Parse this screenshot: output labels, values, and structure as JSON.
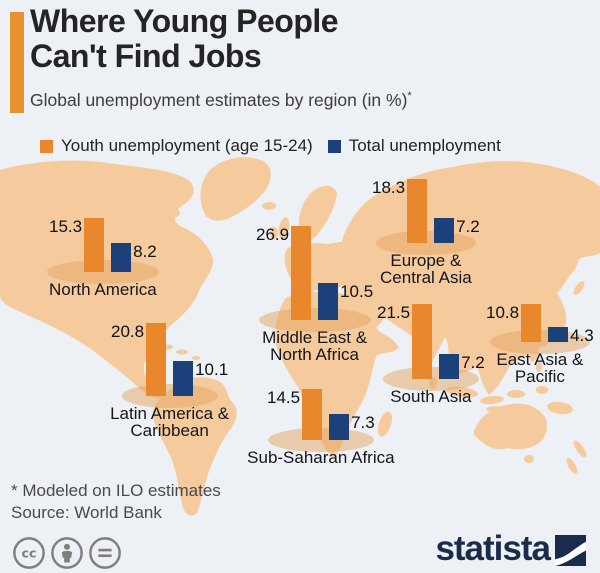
{
  "header": {
    "title_line1": "Where Young People",
    "title_line2": "Can't Find Jobs",
    "subtitle": "Global unemployment estimates by region (in %)",
    "note_mark": "*"
  },
  "legend": {
    "youth_label": "Youth unemployment (age 15-24)",
    "total_label": "Total unemployment"
  },
  "regions": [
    {
      "name": "North America",
      "youth": "15.3",
      "total": "8.2"
    },
    {
      "name": "Latin America &\nCaribbean",
      "youth": "20.8",
      "total": "10.1"
    },
    {
      "name": "Middle East &\nNorth Africa",
      "youth": "26.9",
      "total": "10.5"
    },
    {
      "name": "Sub-Saharan Africa",
      "youth": "14.5",
      "total": "7.3"
    },
    {
      "name": "Europe &\nCentral Asia",
      "youth": "18.3",
      "total": "7.2"
    },
    {
      "name": "South Asia",
      "youth": "21.5",
      "total": "7.2"
    },
    {
      "name": "East Asia &\nPacific",
      "youth": "10.8",
      "total": "4.3"
    }
  ],
  "chart_data": {
    "type": "bar",
    "title": "Where Young People Can't Find Jobs",
    "subtitle": "Global unemployment estimates by region (in %)*",
    "unit": "%",
    "categories": [
      "North America",
      "Latin America & Caribbean",
      "Middle East & North Africa",
      "Sub-Saharan Africa",
      "Europe & Central Asia",
      "South Asia",
      "East Asia & Pacific"
    ],
    "series": [
      {
        "name": "Youth unemployment (age 15-24)",
        "values": [
          15.3,
          20.8,
          26.9,
          14.5,
          18.3,
          21.5,
          10.8
        ]
      },
      {
        "name": "Total unemployment",
        "values": [
          8.2,
          10.1,
          10.5,
          7.3,
          7.2,
          7.2,
          4.3
        ]
      }
    ],
    "legend_position": "top",
    "layout": "bars plotted over world map by region"
  },
  "footer": {
    "note": "* Modeled on ILO estimates",
    "source": "Source: World Bank"
  },
  "branding": {
    "logo_text": "statista",
    "license_icons": [
      "creative-commons",
      "attribution",
      "no-derivatives"
    ]
  },
  "colors": {
    "youth_bar": "#E8872C",
    "total_bar": "#1C4079",
    "accent_bar": "#E8912F",
    "map_land": "#F5CA9D",
    "background": "#EDF0F4",
    "logo_navy": "#1B2B4B"
  }
}
